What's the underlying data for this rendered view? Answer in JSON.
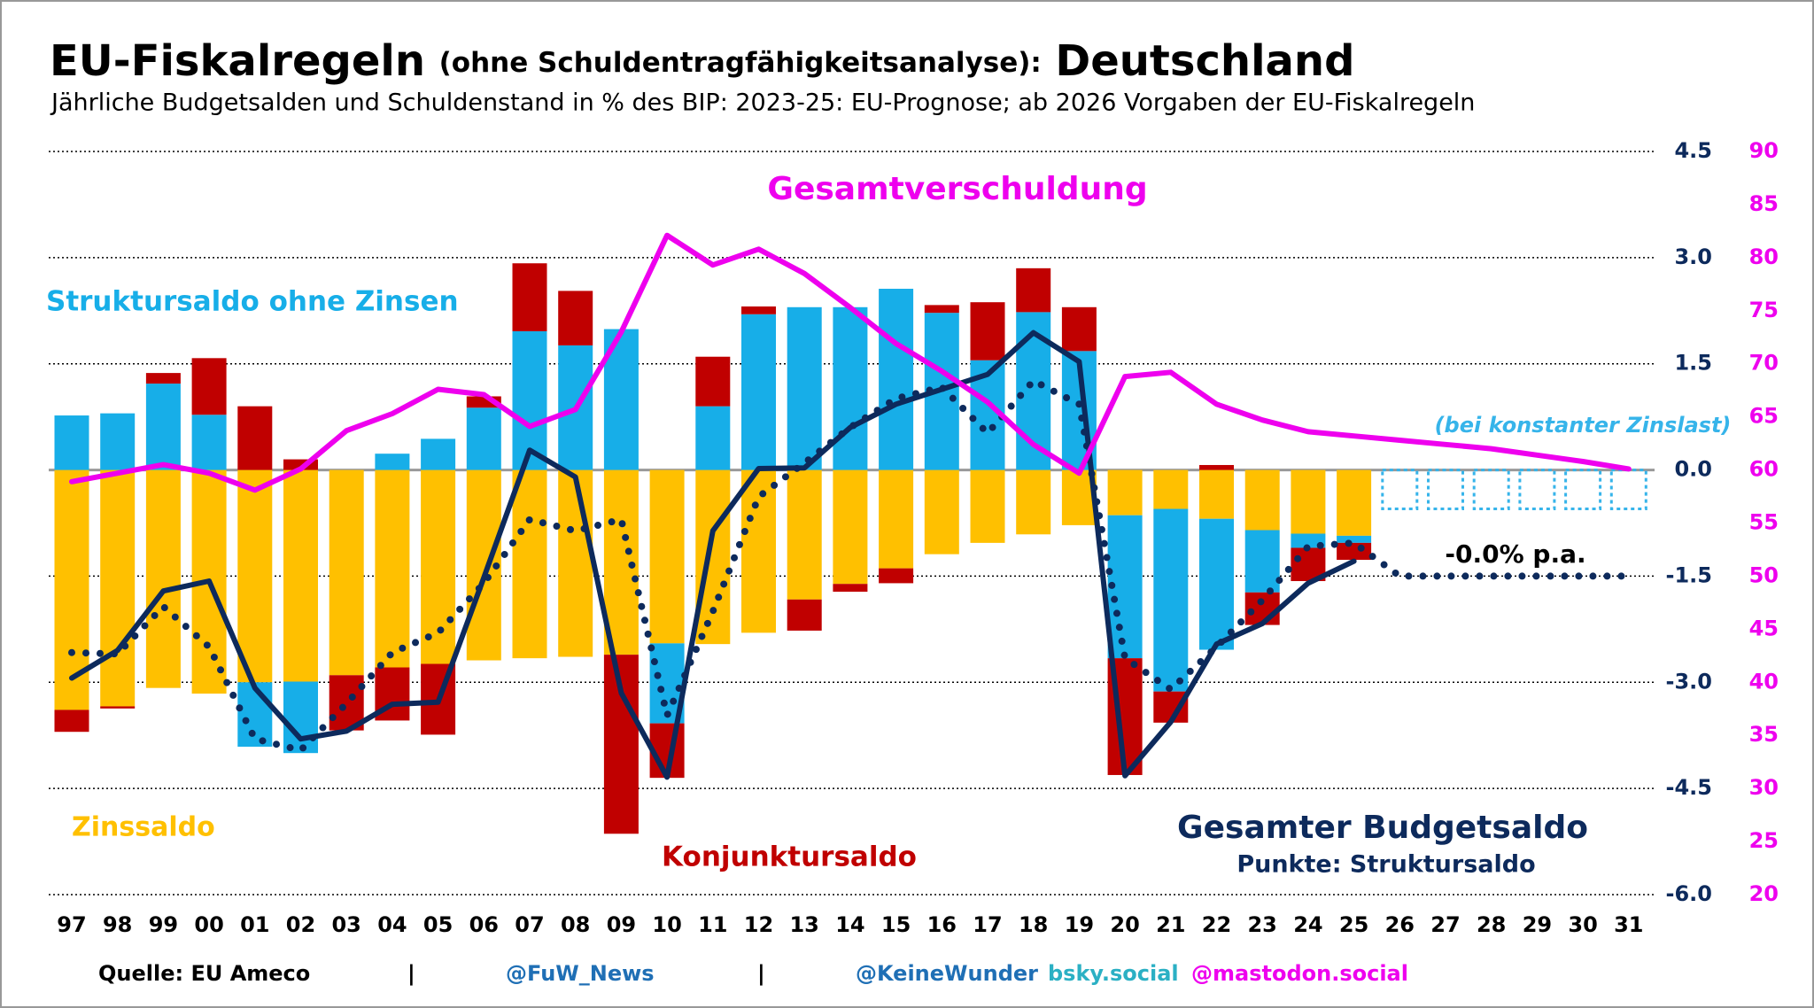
{
  "chart_data": {
    "type": "bar",
    "title": [
      "EU-Fiskalregeln",
      "(ohne Schuldentragfähigkeitsanalyse):",
      "Deutschland"
    ],
    "subtitle": "Jährliche Budgetsalden und Schuldenstand in % des BIP: 2023-25: EU-Prognose; ab 2026 Vorgaben der EU-Fiskalregeln",
    "categories": [
      "97",
      "98",
      "99",
      "00",
      "01",
      "02",
      "03",
      "04",
      "05",
      "06",
      "07",
      "08",
      "09",
      "10",
      "11",
      "12",
      "13",
      "14",
      "15",
      "16",
      "17",
      "18",
      "19",
      "20",
      "21",
      "22",
      "23",
      "24",
      "25",
      "26",
      "27",
      "28",
      "29",
      "30",
      "31"
    ],
    "ylim": [
      -6,
      4.5
    ],
    "yticks": [
      {
        "value": -6,
        "label": "-6.0"
      },
      -4.5,
      {
        "value": -3,
        "label": "-3.0"
      },
      -1.5,
      {
        "value": 0,
        "label": "0.0"
      },
      1.5,
      {
        "value": 3,
        "label": "3.0"
      },
      4.5
    ],
    "y2lim": [
      20,
      90
    ],
    "y2ticks": [
      20,
      25,
      30,
      35,
      40,
      45,
      50,
      55,
      60,
      65,
      70,
      75,
      80,
      85,
      90
    ],
    "grid": true,
    "series": [
      {
        "name": "Zinssaldo",
        "type": "bar",
        "color": "#ffc000",
        "values": [
          -3.39,
          -3.34,
          -3.08,
          -3.16,
          -3.0,
          -2.99,
          -2.9,
          -2.79,
          -2.74,
          -2.69,
          -2.66,
          -2.64,
          -2.61,
          -2.45,
          -2.46,
          -2.3,
          -1.83,
          -1.61,
          -1.39,
          -1.19,
          -1.03,
          -0.91,
          -0.78,
          -0.64,
          -0.55,
          -0.69,
          -0.85,
          -0.9,
          -0.93,
          null,
          null,
          null,
          null,
          null,
          null
        ]
      },
      {
        "name": "Struktursaldo ohne Zinsen",
        "type": "bar",
        "color": "#17aee8",
        "values": [
          0.77,
          0.8,
          1.22,
          0.78,
          -0.91,
          -1.01,
          0,
          0.23,
          0.44,
          0.88,
          1.96,
          1.76,
          1.99,
          -1.13,
          0.9,
          2.2,
          2.3,
          2.3,
          2.56,
          2.22,
          1.55,
          2.23,
          1.68,
          -2.02,
          -2.58,
          -1.85,
          -0.88,
          -0.2,
          -0.1,
          null,
          null,
          null,
          null,
          null,
          null
        ]
      },
      {
        "name": "Konjunktursaldo",
        "type": "bar",
        "color": "#c00000",
        "values": [
          -0.31,
          -0.03,
          0.15,
          0.8,
          0.9,
          0.15,
          -0.78,
          -0.75,
          -1.0,
          0.16,
          0.96,
          0.77,
          -2.53,
          -0.77,
          0.7,
          0.11,
          -0.44,
          -0.11,
          -0.21,
          0.11,
          0.82,
          0.62,
          0.62,
          -1.65,
          -0.44,
          0.07,
          -0.46,
          -0.47,
          -0.24,
          null,
          null,
          null,
          null,
          null,
          null
        ]
      },
      {
        "name": "(bei konstanter Zinslast)",
        "type": "bar",
        "outline": true,
        "color": "#36b4ea",
        "values": [
          null,
          null,
          null,
          null,
          null,
          null,
          null,
          null,
          null,
          null,
          null,
          null,
          null,
          null,
          null,
          null,
          null,
          null,
          null,
          null,
          null,
          null,
          null,
          null,
          null,
          null,
          null,
          null,
          null,
          -0.55,
          -0.55,
          -0.55,
          -0.55,
          -0.55,
          -0.55
        ]
      },
      {
        "name": "Gesamter Budgetsaldo",
        "type": "line",
        "color": "#0d2a5c",
        "values": [
          -2.94,
          -2.55,
          -1.71,
          -1.57,
          -3.08,
          -3.8,
          -3.69,
          -3.31,
          -3.28,
          -1.52,
          0.28,
          -0.1,
          -3.15,
          -4.34,
          -0.86,
          0.02,
          0.03,
          0.6,
          0.93,
          1.14,
          1.35,
          1.94,
          1.53,
          -4.32,
          -3.56,
          -2.46,
          -2.17,
          -1.6,
          -1.29,
          null,
          null,
          null,
          null,
          null,
          null
        ]
      },
      {
        "name": "Punkte: Struktursaldo",
        "type": "line",
        "dotted": true,
        "color": "#0d2a5c",
        "values": [
          -2.58,
          -2.6,
          -1.93,
          -2.5,
          -3.8,
          -3.96,
          -3.3,
          -2.58,
          -2.3,
          -1.6,
          -0.7,
          -0.86,
          -0.7,
          -3.47,
          -2.0,
          -0.38,
          0.1,
          0.6,
          1.01,
          1.17,
          0.52,
          1.26,
          0.93,
          -2.66,
          -3.1,
          -2.5,
          -1.84,
          -1.08,
          -1.03,
          -1.5,
          -1.5,
          -1.5,
          -1.5,
          -1.5,
          -1.5
        ]
      },
      {
        "name": "Gesamtverschuldung",
        "type": "line",
        "axis": "y2",
        "color": "#ee00ee",
        "values": [
          58.9,
          59.7,
          60.5,
          59.7,
          58.1,
          60.1,
          63.7,
          65.3,
          67.6,
          67.1,
          64.1,
          65.7,
          73.0,
          82.1,
          79.3,
          80.8,
          78.5,
          75.3,
          71.9,
          69.3,
          66.4,
          62.4,
          59.7,
          68.8,
          69.2,
          66.2,
          64.7,
          63.6,
          63.2,
          62.8,
          62.4,
          62.0,
          61.4,
          60.8,
          60.1
        ]
      }
    ],
    "annotations": [
      "-0.0% p.a."
    ],
    "footer": [
      "Quelle: EU Ameco",
      "|",
      "@FuW_News",
      "|",
      "@KeineWunder",
      "bsky.social",
      "@mastodon.social"
    ]
  }
}
